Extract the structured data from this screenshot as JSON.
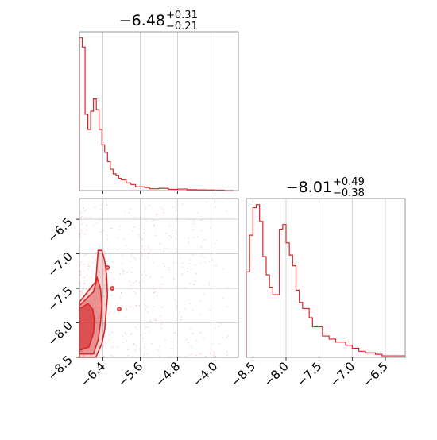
{
  "chart_data": {
    "type": "corner",
    "color": "#d62728",
    "parameters": [
      {
        "median": "−6.48",
        "upper": "+0.31",
        "lower": "−0.21"
      },
      {
        "median": "−8.01",
        "upper": "+0.49",
        "lower": "−0.38"
      }
    ],
    "hist1": {
      "xlim": [
        -6.9,
        -3.5
      ],
      "ylim": [
        0,
        1.04
      ],
      "bin_edges": [
        -6.9,
        -6.84,
        -6.78,
        -6.72,
        -6.66,
        -6.6,
        -6.54,
        -6.48,
        -6.42,
        -6.36,
        -6.3,
        -6.24,
        -6.18,
        -6.12,
        -6.06,
        -6.0,
        -5.9,
        -5.8,
        -5.7,
        -5.6,
        -5.5,
        -5.4,
        -5.2,
        -5.0,
        -4.8,
        -4.6,
        -4.4,
        -4.2,
        -4.0,
        -3.8,
        -3.6
      ],
      "counts": [
        1.0,
        0.94,
        0.5,
        0.4,
        0.52,
        0.6,
        0.53,
        0.4,
        0.3,
        0.25,
        0.19,
        0.14,
        0.11,
        0.1,
        0.08,
        0.07,
        0.05,
        0.04,
        0.025,
        0.025,
        0.02,
        0.012,
        0.015,
        0.008,
        0.01,
        0.006,
        0.005,
        0.004,
        0.003,
        0.0
      ]
    },
    "hist2": {
      "xlim": [
        -8.6,
        -6.2
      ],
      "ylim": [
        0,
        1.04
      ],
      "bin_edges": [
        -8.6,
        -8.55,
        -8.5,
        -8.45,
        -8.4,
        -8.35,
        -8.3,
        -8.25,
        -8.2,
        -8.15,
        -8.1,
        -8.05,
        -8.0,
        -7.95,
        -7.9,
        -7.85,
        -7.8,
        -7.75,
        -7.7,
        -7.65,
        -7.6,
        -7.55,
        -7.5,
        -7.45,
        -7.4,
        -7.35,
        -7.3,
        -7.25,
        -7.2,
        -7.15,
        -7.1,
        -7.05,
        -7.0,
        -6.95,
        -6.9,
        -6.85,
        -6.8,
        -6.75,
        -6.7,
        -6.65,
        -6.6,
        -6.55,
        -6.5,
        -6.45,
        -6.4,
        -6.35,
        -6.3,
        -6.25,
        -6.2
      ],
      "counts": [
        0.56,
        0.8,
        0.98,
        1.0,
        0.89,
        0.66,
        0.54,
        0.46,
        0.41,
        0.41,
        0.84,
        0.87,
        0.75,
        0.67,
        0.6,
        0.44,
        0.36,
        0.32,
        0.32,
        0.26,
        0.2,
        0.2,
        0.2,
        0.14,
        0.14,
        0.12,
        0.12,
        0.1,
        0.1,
        0.1,
        0.08,
        0.08,
        0.06,
        0.06,
        0.04,
        0.04,
        0.03,
        0.03,
        0.03,
        0.02,
        0.02,
        0.01,
        0.01,
        0.01,
        0.01,
        0.01,
        0.01,
        0.01
      ]
    },
    "scatter2d": {
      "xlim": [
        -6.9,
        -3.5
      ],
      "ylim": [
        -8.5,
        -6.2
      ],
      "levels": [
        {
          "x": [
            -6.9,
            -6.55,
            -6.42,
            -6.36,
            -6.33,
            -6.3,
            -6.32,
            -6.36,
            -6.42,
            -6.5,
            -6.55,
            -6.9
          ],
          "y": [
            -8.5,
            -8.5,
            -8.3,
            -8.1,
            -7.85,
            -7.6,
            -7.3,
            -7.1,
            -6.95,
            -6.95,
            -7.4,
            -7.7
          ]
        },
        {
          "x": [
            -6.9,
            -6.6,
            -6.5,
            -6.45,
            -6.42,
            -6.45,
            -6.52,
            -6.6,
            -6.9
          ],
          "y": [
            -8.45,
            -8.45,
            -8.25,
            -8.0,
            -7.75,
            -7.5,
            -7.35,
            -7.55,
            -7.75
          ]
        },
        {
          "x": [
            -6.9,
            -6.7,
            -6.6,
            -6.58,
            -6.62,
            -6.72,
            -6.9
          ],
          "y": [
            -8.4,
            -8.35,
            -8.15,
            -7.95,
            -7.8,
            -7.72,
            -7.8
          ]
        }
      ],
      "islands": [
        {
          "x": -6.05,
          "y": -7.8,
          "r": 0.04
        },
        {
          "x": -6.2,
          "y": -7.5,
          "r": 0.03
        },
        {
          "x": -6.3,
          "y": -7.2,
          "r": 0.02
        }
      ]
    },
    "axes": {
      "x_ticks": [
        -6.4,
        -5.6,
        -4.8,
        -4.0
      ],
      "x_tick_labels": [
        "−6.4",
        "−5.6",
        "−4.8",
        "−4.0"
      ],
      "y_ticks": [
        -6.5,
        -7.0,
        -7.5,
        -8.0,
        -8.5
      ],
      "y_tick_labels": [
        "−6.5",
        "−7.0",
        "−7.5",
        "−8.0",
        "−8.5"
      ],
      "x2_ticks": [
        -8.5,
        -8.0,
        -7.5,
        -7.0,
        -6.5
      ],
      "x2_tick_labels": [
        "−8.5",
        "−8.0",
        "−7.5",
        "−7.0",
        "−6.5"
      ]
    }
  }
}
